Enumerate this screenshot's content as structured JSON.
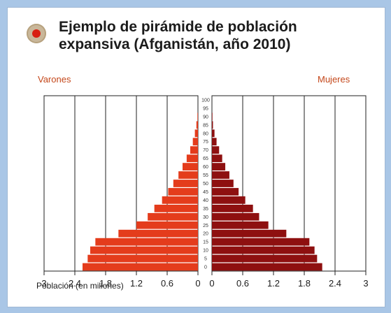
{
  "title_lines": [
    "Ejemplo de pirámide de población",
    "expansiva (Afganistán, año 2010)"
  ],
  "left_header": "Varones",
  "right_header": "Mujeres",
  "xlabel": "Población (en millones)",
  "colors": {
    "male": "#e43c1c",
    "female": "#8e1010",
    "bullet": "#d81e12",
    "header": "#c4471a"
  },
  "chart_data": {
    "type": "bar",
    "orientation": "horizontal-pyramid",
    "categories": [
      "0",
      "5",
      "10",
      "15",
      "20",
      "25",
      "30",
      "35",
      "40",
      "45",
      "50",
      "55",
      "60",
      "65",
      "70",
      "75",
      "80",
      "85",
      "90",
      "95",
      "100"
    ],
    "series": [
      {
        "name": "Varones",
        "values": [
          2.25,
          2.15,
          2.1,
          2.0,
          1.55,
          1.2,
          0.98,
          0.85,
          0.7,
          0.58,
          0.48,
          0.38,
          0.3,
          0.22,
          0.15,
          0.1,
          0.06,
          0.03,
          0.01,
          0,
          0
        ]
      },
      {
        "name": "Mujeres",
        "values": [
          2.15,
          2.05,
          2.0,
          1.9,
          1.45,
          1.1,
          0.92,
          0.8,
          0.65,
          0.52,
          0.42,
          0.34,
          0.26,
          0.2,
          0.14,
          0.09,
          0.05,
          0.02,
          0.01,
          0,
          0
        ]
      }
    ],
    "x_ticks_left": [
      "3",
      "2.4",
      "1.8",
      "1.2",
      "0.6",
      "0"
    ],
    "x_ticks_right": [
      "0",
      "0.6",
      "1.2",
      "1.8",
      "2.4",
      "3"
    ],
    "xlim": [
      0,
      3
    ],
    "grid": true
  }
}
